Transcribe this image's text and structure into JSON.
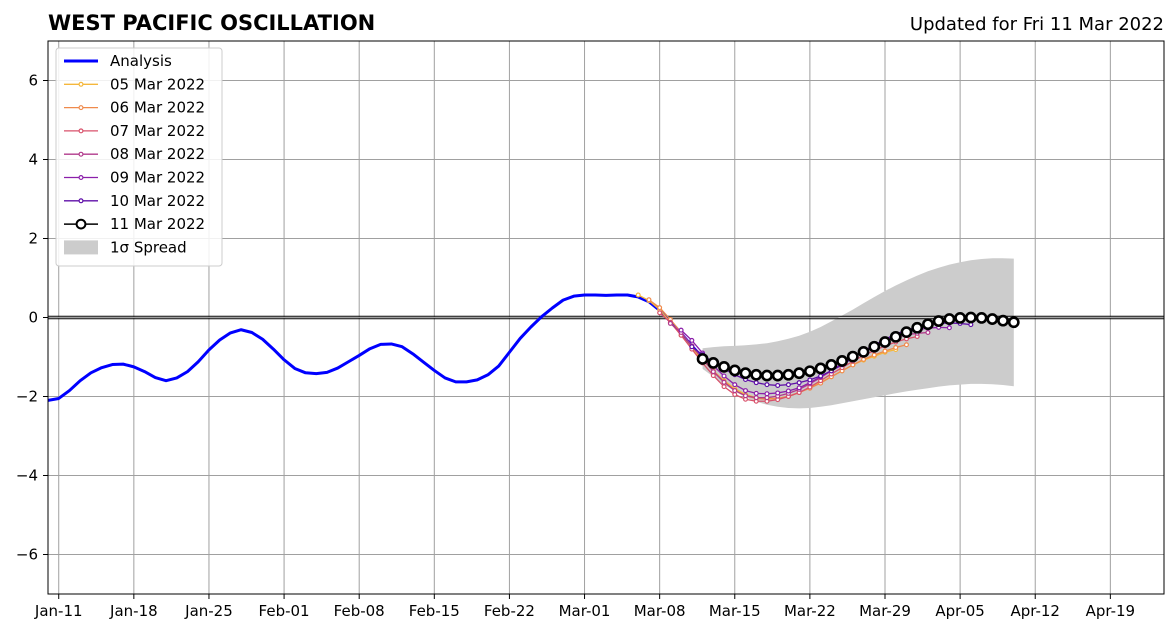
{
  "header": {
    "title": "WEST PACIFIC OSCILLATION",
    "updated": "Updated for Fri 11 Mar 2022"
  },
  "chart_data": {
    "type": "line",
    "title": "WEST PACIFIC OSCILLATION",
    "subtitle": "Updated for Fri 11 Mar 2022",
    "xlabel": "",
    "ylabel": "",
    "x_range": [
      "2022-01-10",
      "2022-04-24"
    ],
    "ylim": [
      -7,
      7
    ],
    "grid": true,
    "legend_position": "top-left",
    "x_ticks": [
      {
        "date": "2022-01-11",
        "label": "Jan-11"
      },
      {
        "date": "2022-01-18",
        "label": "Jan-18"
      },
      {
        "date": "2022-01-25",
        "label": "Jan-25"
      },
      {
        "date": "2022-02-01",
        "label": "Feb-01"
      },
      {
        "date": "2022-02-08",
        "label": "Feb-08"
      },
      {
        "date": "2022-02-15",
        "label": "Feb-15"
      },
      {
        "date": "2022-02-22",
        "label": "Feb-22"
      },
      {
        "date": "2022-03-01",
        "label": "Mar-01"
      },
      {
        "date": "2022-03-08",
        "label": "Mar-08"
      },
      {
        "date": "2022-03-15",
        "label": "Mar-15"
      },
      {
        "date": "2022-03-22",
        "label": "Mar-22"
      },
      {
        "date": "2022-03-29",
        "label": "Mar-29"
      },
      {
        "date": "2022-04-05",
        "label": "Apr-05"
      },
      {
        "date": "2022-04-12",
        "label": "Apr-12"
      },
      {
        "date": "2022-04-19",
        "label": "Apr-19"
      }
    ],
    "y_ticks": [
      {
        "value": 6,
        "label": "6"
      },
      {
        "value": 4,
        "label": "4"
      },
      {
        "value": 2,
        "label": "2"
      },
      {
        "value": 0,
        "label": "0"
      },
      {
        "value": -2,
        "label": "−2"
      },
      {
        "value": -4,
        "label": "−4"
      },
      {
        "value": -6,
        "label": "−6"
      }
    ],
    "analysis": {
      "name": "Analysis",
      "color": "#0000ff",
      "start": "2022-01-10",
      "values": [
        -2.1,
        -2.05,
        -1.85,
        -1.6,
        -1.4,
        -1.27,
        -1.19,
        -1.18,
        -1.25,
        -1.37,
        -1.52,
        -1.6,
        -1.53,
        -1.37,
        -1.12,
        -0.82,
        -0.57,
        -0.39,
        -0.31,
        -0.38,
        -0.55,
        -0.8,
        -1.07,
        -1.29,
        -1.4,
        -1.42,
        -1.39,
        -1.28,
        -1.12,
        -0.96,
        -0.79,
        -0.68,
        -0.67,
        -0.74,
        -0.92,
        -1.13,
        -1.34,
        -1.53,
        -1.63,
        -1.63,
        -1.58,
        -1.45,
        -1.23,
        -0.88,
        -0.53,
        -0.24,
        0.02,
        0.24,
        0.44,
        0.54,
        0.57,
        0.57,
        0.56,
        0.57,
        0.57,
        0.52,
        0.4,
        0.18,
        -0.1,
        -0.4,
        -0.72,
        -1.02
      ]
    },
    "forecasts": [
      {
        "name": "05 Mar 2022",
        "color": "#f5b73b",
        "start": "2022-03-06",
        "values": [
          0.57,
          0.43,
          0.2,
          -0.12,
          -0.45,
          -0.78,
          -1.08,
          -1.35,
          -1.6,
          -1.8,
          -1.95,
          -2.03,
          -2.05,
          -2.05,
          -2.0,
          -1.9,
          -1.78,
          -1.64,
          -1.5,
          -1.35,
          -1.2,
          -1.08,
          -0.98,
          -0.88,
          -0.81
        ]
      },
      {
        "name": "06 Mar 2022",
        "color": "#ef8a4c",
        "start": "2022-03-07",
        "values": [
          0.45,
          0.25,
          -0.05,
          -0.38,
          -0.72,
          -1.05,
          -1.35,
          -1.62,
          -1.84,
          -1.98,
          -2.05,
          -2.07,
          -2.05,
          -1.99,
          -1.9,
          -1.79,
          -1.66,
          -1.5,
          -1.35,
          -1.2,
          -1.06,
          -0.95,
          -0.85,
          -0.76,
          -0.69
        ]
      },
      {
        "name": "07 Mar 2022",
        "color": "#d8516b",
        "start": "2022-03-08",
        "values": [
          0.12,
          -0.12,
          -0.45,
          -0.8,
          -1.15,
          -1.47,
          -1.75,
          -1.95,
          -2.07,
          -2.12,
          -2.12,
          -2.08,
          -2.0,
          -1.9,
          -1.76,
          -1.6,
          -1.43,
          -1.27,
          -1.11,
          -0.96,
          -0.84,
          -0.72,
          -0.62,
          -0.54,
          -0.48
        ]
      },
      {
        "name": "08 Mar 2022",
        "color": "#b13a8b",
        "start": "2022-03-09",
        "values": [
          -0.15,
          -0.38,
          -0.72,
          -1.05,
          -1.37,
          -1.64,
          -1.85,
          -1.98,
          -2.03,
          -2.03,
          -1.99,
          -1.92,
          -1.82,
          -1.68,
          -1.52,
          -1.35,
          -1.18,
          -1.02,
          -0.86,
          -0.72,
          -0.6,
          -0.51,
          -0.44,
          -0.4,
          -0.38
        ]
      },
      {
        "name": "09 Mar 2022",
        "color": "#8b1faa",
        "start": "2022-03-10",
        "values": [
          -0.32,
          -0.58,
          -0.9,
          -1.22,
          -1.48,
          -1.7,
          -1.85,
          -1.92,
          -1.93,
          -1.91,
          -1.86,
          -1.78,
          -1.65,
          -1.5,
          -1.34,
          -1.17,
          -1.0,
          -0.84,
          -0.7,
          -0.57,
          -0.46,
          -0.37,
          -0.31,
          -0.27,
          -0.25,
          -0.26
        ]
      },
      {
        "name": "10 Mar 2022",
        "color": "#5f0fa8",
        "start": "2022-03-11",
        "values": [
          -0.74,
          -0.94,
          -1.13,
          -1.3,
          -1.45,
          -1.57,
          -1.65,
          -1.7,
          -1.72,
          -1.7,
          -1.65,
          -1.58,
          -1.48,
          -1.35,
          -1.2,
          -1.03,
          -0.86,
          -0.7,
          -0.55,
          -0.42,
          -0.32,
          -0.24,
          -0.18,
          -0.15,
          -0.14,
          -0.15,
          -0.18
        ]
      },
      {
        "name": "11 Mar 2022",
        "color": "#000000",
        "start": "2022-03-12",
        "values": [
          -1.05,
          -1.15,
          -1.25,
          -1.34,
          -1.41,
          -1.45,
          -1.47,
          -1.47,
          -1.45,
          -1.41,
          -1.36,
          -1.29,
          -1.2,
          -1.1,
          -0.99,
          -0.87,
          -0.74,
          -0.62,
          -0.49,
          -0.37,
          -0.26,
          -0.17,
          -0.09,
          -0.04,
          -0.01,
          0.0,
          -0.01,
          -0.04,
          -0.08,
          -0.12
        ]
      }
    ],
    "spread": {
      "name": "1σ Spread",
      "color": "#cccccc",
      "start": "2022-03-12",
      "upper": [
        -0.78,
        -0.75,
        -0.73,
        -0.72,
        -0.7,
        -0.68,
        -0.65,
        -0.6,
        -0.54,
        -0.46,
        -0.36,
        -0.24,
        -0.1,
        0.05,
        0.2,
        0.36,
        0.52,
        0.67,
        0.81,
        0.94,
        1.06,
        1.17,
        1.26,
        1.34,
        1.4,
        1.45,
        1.48,
        1.5,
        1.5,
        1.49
      ],
      "lower": [
        -1.3,
        -1.5,
        -1.7,
        -1.87,
        -2.02,
        -2.13,
        -2.21,
        -2.26,
        -2.29,
        -2.3,
        -2.29,
        -2.26,
        -2.22,
        -2.17,
        -2.12,
        -2.07,
        -2.02,
        -1.97,
        -1.92,
        -1.87,
        -1.83,
        -1.79,
        -1.75,
        -1.72,
        -1.7,
        -1.68,
        -1.68,
        -1.69,
        -1.71,
        -1.74
      ]
    }
  }
}
